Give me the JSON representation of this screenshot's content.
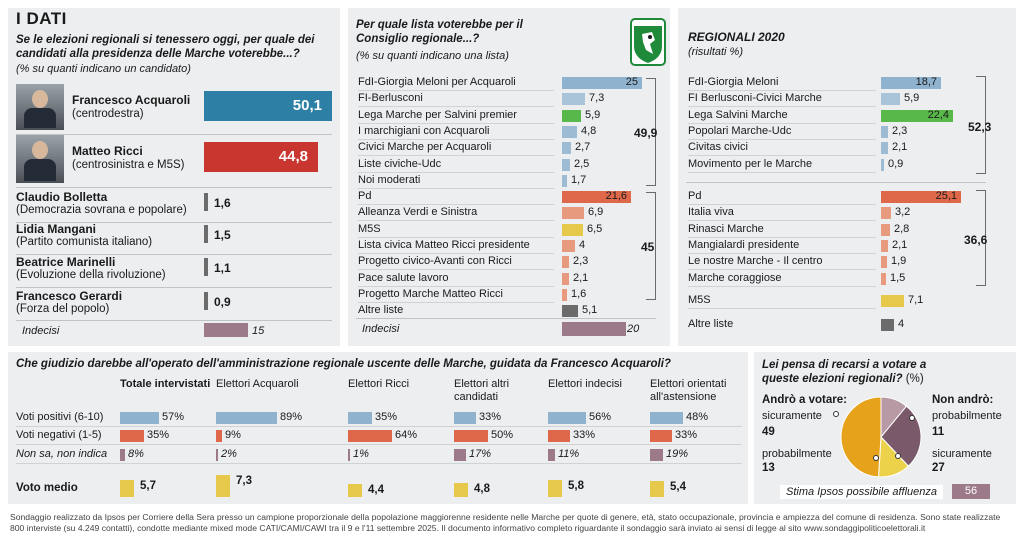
{
  "header": {
    "title": "I DATI",
    "question": "Se le elezioni regionali si tenessero oggi, per quale dei candidati alla presidenza delle Marche voterebbe...?",
    "note": "(% su quanti indicano un candidato)"
  },
  "candidates": [
    {
      "name": "Francesco Acquaroli",
      "party": "(centrodestra)",
      "value": "50,1",
      "v": 50.1,
      "color": "#2e7fa6",
      "photo": true
    },
    {
      "name": "Matteo Ricci",
      "party": "(centrosinistra e M5S)",
      "value": "44,8",
      "v": 44.8,
      "color": "#c8362f",
      "photo": true
    },
    {
      "name": "Claudio Bolletta",
      "party": "(Democrazia sovrana e popolare)",
      "value": "1,6",
      "v": 1.6,
      "color": "#6b6b6b"
    },
    {
      "name": "Lidia Mangani",
      "party": "(Partito comunista italiano)",
      "value": "1,5",
      "v": 1.5,
      "color": "#6b6b6b"
    },
    {
      "name": "Beatrice Marinelli",
      "party": "(Evoluzione della rivoluzione)",
      "value": "1,1",
      "v": 1.1,
      "color": "#6b6b6b"
    },
    {
      "name": "Francesco Gerardi",
      "party": "(Forza del popolo)",
      "value": "0,9",
      "v": 0.9,
      "color": "#6b6b6b"
    }
  ],
  "candidates_undecided": {
    "label": "Indecisi",
    "value": "15",
    "v": 15
  },
  "lists": {
    "title": "Per quale lista voterebbe per il Consiglio regionale...?",
    "note": "(% su quanti indicano una lista)",
    "items": [
      {
        "name": "FdI-Giorgia Meloni per Acquaroli",
        "value": "25",
        "v": 25,
        "color": "#8fb3cf"
      },
      {
        "name": "FI-Berlusconi",
        "value": "7,3",
        "v": 7.3,
        "color": "#a9c4d8"
      },
      {
        "name": "Lega Marche per Salvini premier",
        "value": "5,9",
        "v": 5.9,
        "color": "#58b84a"
      },
      {
        "name": "I marchigiani con Acquaroli",
        "value": "4,8",
        "v": 4.8,
        "color": "#9dbcd4"
      },
      {
        "name": "Civici Marche per Acquaroli",
        "value": "2,7",
        "v": 2.7,
        "color": "#9dbcd4"
      },
      {
        "name": "Liste civiche-Udc",
        "value": "2,5",
        "v": 2.5,
        "color": "#9dbcd4"
      },
      {
        "name": "Noi moderati",
        "value": "1,7",
        "v": 1.7,
        "color": "#9dbcd4"
      },
      {
        "name": "Pd",
        "value": "21,6",
        "v": 21.6,
        "color": "#e0684a"
      },
      {
        "name": "Alleanza Verdi e Sinistra",
        "value": "6,9",
        "v": 6.9,
        "color": "#e89a7f"
      },
      {
        "name": "M5S",
        "value": "6,5",
        "v": 6.5,
        "color": "#e6c84a"
      },
      {
        "name": "Lista civica Matteo Ricci presidente",
        "value": "4",
        "v": 4,
        "color": "#e89a7f"
      },
      {
        "name": "Progetto civico-Avanti con Ricci",
        "value": "2,3",
        "v": 2.3,
        "color": "#e89a7f"
      },
      {
        "name": "Pace salute lavoro",
        "value": "2,1",
        "v": 2.1,
        "color": "#e89a7f"
      },
      {
        "name": "Progetto Marche Matteo Ricci",
        "value": "1,6",
        "v": 1.6,
        "color": "#e89a7f"
      },
      {
        "name": "Altre liste",
        "value": "5,1",
        "v": 5.1,
        "color": "#6b6b6b"
      }
    ],
    "undecided": {
      "label": "Indecisi",
      "value": "20",
      "v": 20
    },
    "total_right": "49,9",
    "total_left": "45"
  },
  "regionali": {
    "title": "REGIONALI 2020",
    "note": "(risultati %)",
    "items": [
      {
        "name": "FdI-Giorgia Meloni",
        "value": "18,7",
        "v": 18.7,
        "color": "#8fb3cf"
      },
      {
        "name": "FI Berlusconi-Civici Marche",
        "value": "5,9",
        "v": 5.9,
        "color": "#a9c4d8"
      },
      {
        "name": "Lega Salvini Marche",
        "value": "22,4",
        "v": 22.4,
        "color": "#58b84a"
      },
      {
        "name": "Popolari Marche-Udc",
        "value": "2,3",
        "v": 2.3,
        "color": "#9dbcd4"
      },
      {
        "name": "Civitas civici",
        "value": "2,1",
        "v": 2.1,
        "color": "#9dbcd4"
      },
      {
        "name": "Movimento per le Marche",
        "value": "0,9",
        "v": 0.9,
        "color": "#9dbcd4"
      },
      {
        "name": "Pd",
        "value": "25,1",
        "v": 25.1,
        "color": "#e0684a"
      },
      {
        "name": "Italia viva",
        "value": "3,2",
        "v": 3.2,
        "color": "#e89a7f"
      },
      {
        "name": "Rinasci Marche",
        "value": "2,8",
        "v": 2.8,
        "color": "#e89a7f"
      },
      {
        "name": "Mangialardi presidente",
        "value": "2,1",
        "v": 2.1,
        "color": "#e89a7f"
      },
      {
        "name": "Le nostre Marche - Il centro",
        "value": "1,9",
        "v": 1.9,
        "color": "#e89a7f"
      },
      {
        "name": "Marche coraggiose",
        "value": "1,5",
        "v": 1.5,
        "color": "#e89a7f"
      },
      {
        "name": "M5S",
        "value": "7,1",
        "v": 7.1,
        "color": "#e6c84a"
      },
      {
        "name": "Altre liste",
        "value": "4",
        "v": 4,
        "color": "#6b6b6b"
      }
    ],
    "total_right": "52,3",
    "total_left": "36,6"
  },
  "judgement": {
    "title": "Che giudizio darebbe all'operato dell'amministrazione regionale uscente delle Marche, guidata da Francesco Acquaroli?",
    "columns": [
      "Totale intervistati",
      "Elettori Acquaroli",
      "Elettori Ricci",
      "Elettori altri candidati",
      "Elettori indecisi",
      "Elettori orientati all'astensione"
    ],
    "rows": [
      {
        "label": "Voti positivi (6-10)",
        "values": [
          "57%",
          "89%",
          "35%",
          "33%",
          "56%",
          "48%"
        ],
        "v": [
          57,
          89,
          35,
          33,
          56,
          48
        ],
        "color": "#8fb3cf"
      },
      {
        "label": "Voti negativi (1-5)",
        "values": [
          "35%",
          "9%",
          "64%",
          "50%",
          "33%",
          "33%"
        ],
        "v": [
          35,
          9,
          64,
          50,
          33,
          33
        ],
        "color": "#e0684a"
      },
      {
        "label": "Non sa, non indica",
        "values": [
          "8%",
          "2%",
          "1%",
          "17%",
          "11%",
          "19%"
        ],
        "v": [
          8,
          2,
          1,
          17,
          11,
          19
        ],
        "color": "#9c7a8a"
      }
    ],
    "avg_label": "Voto medio",
    "avg": [
      "5,7",
      "7,3",
      "4,4",
      "4,8",
      "5,8",
      "5,4"
    ],
    "avg_v": [
      5.7,
      7.3,
      4.4,
      4.8,
      5.8,
      5.4
    ]
  },
  "turnout": {
    "title": "Lei pensa di recarsi a votare a queste elezioni regionali?",
    "title_unit": "(%)",
    "will": "Andrò a votare:",
    "wont": "Non andrò:",
    "slices": [
      {
        "label": "sicuramente",
        "value": "49",
        "v": 49,
        "color": "#e6a21a"
      },
      {
        "label": "probabilmente",
        "value": "13",
        "v": 13,
        "color": "#ecd24a"
      },
      {
        "label": "sicuramente",
        "value": "27",
        "v": 27,
        "color": "#7a5a6a"
      },
      {
        "label": "probabilmente",
        "value": "11",
        "v": 11,
        "color": "#b89aa4"
      }
    ],
    "estimate_label": "Stima Ipsos possibile affluenza",
    "estimate": "56"
  },
  "footer": "Sondaggio realizzato da Ipsos per Corriere della Sera presso un campione proporzionale della popolazione maggiorenne residente nelle Marche per quote di genere, età, stato occupazionale, provincia e ampiezza del comune di residenza. Sono state realizzate 800 interviste (su 4.249 contatti), condotte mediante mixed mode CATI/CAMI/CAWI tra il 9 e l'11 settembre 2025. Il documento informativo completo riguardante il sondaggio sarà inviato ai sensi di legge al sito www.sondaggipoliticoelettorali.it",
  "chart_data": [
    {
      "type": "bar",
      "title": "Se le elezioni regionali si tenessero oggi, per quale dei candidati alla presidenza delle Marche voterebbe...?",
      "categories": [
        "Francesco Acquaroli",
        "Matteo Ricci",
        "Claudio Bolletta",
        "Lidia Mangani",
        "Beatrice Marinelli",
        "Francesco Gerardi",
        "Indecisi"
      ],
      "values": [
        50.1,
        44.8,
        1.6,
        1.5,
        1.1,
        0.9,
        15
      ]
    },
    {
      "type": "bar",
      "title": "Per quale lista voterebbe per il Consiglio regionale...?",
      "categories": [
        "FdI-Giorgia Meloni per Acquaroli",
        "FI-Berlusconi",
        "Lega Marche per Salvini premier",
        "I marchigiani con Acquaroli",
        "Civici Marche per Acquaroli",
        "Liste civiche-Udc",
        "Noi moderati",
        "Pd",
        "Alleanza Verdi e Sinistra",
        "M5S",
        "Lista civica Matteo Ricci presidente",
        "Progetto civico-Avanti con Ricci",
        "Pace salute lavoro",
        "Progetto Marche Matteo Ricci",
        "Altre liste",
        "Indecisi"
      ],
      "values": [
        25,
        7.3,
        5.9,
        4.8,
        2.7,
        2.5,
        1.7,
        21.6,
        6.9,
        6.5,
        4,
        2.3,
        2.1,
        1.6,
        5.1,
        20
      ]
    },
    {
      "type": "bar",
      "title": "REGIONALI 2020",
      "categories": [
        "FdI-Giorgia Meloni",
        "FI Berlusconi-Civici Marche",
        "Lega Salvini Marche",
        "Popolari Marche-Udc",
        "Civitas civici",
        "Movimento per le Marche",
        "Pd",
        "Italia viva",
        "Rinasci Marche",
        "Mangialardi presidente",
        "Le nostre Marche - Il centro",
        "Marche coraggiose",
        "M5S",
        "Altre liste"
      ],
      "values": [
        18.7,
        5.9,
        22.4,
        2.3,
        2.1,
        0.9,
        25.1,
        3.2,
        2.8,
        2.1,
        1.9,
        1.5,
        7.1,
        4
      ]
    },
    {
      "type": "bar",
      "title": "Che giudizio darebbe all'operato dell'amministrazione regionale uscente delle Marche, guidata da Francesco Acquaroli?",
      "categories": [
        "Totale intervistati",
        "Elettori Acquaroli",
        "Elettori Ricci",
        "Elettori altri candidati",
        "Elettori indecisi",
        "Elettori orientati all'astensione"
      ],
      "series": [
        {
          "name": "Voti positivi (6-10)",
          "values": [
            57,
            89,
            35,
            33,
            56,
            48
          ]
        },
        {
          "name": "Voti negativi (1-5)",
          "values": [
            35,
            9,
            64,
            50,
            33,
            33
          ]
        },
        {
          "name": "Non sa, non indica",
          "values": [
            8,
            2,
            1,
            17,
            11,
            19
          ]
        },
        {
          "name": "Voto medio",
          "values": [
            5.7,
            7.3,
            4.4,
            4.8,
            5.8,
            5.4
          ]
        }
      ]
    },
    {
      "type": "pie",
      "title": "Lei pensa di recarsi a votare a queste elezioni regionali?",
      "categories": [
        "Andrò a votare: sicuramente",
        "Andrò a votare: probabilmente",
        "Non andrò: sicuramente",
        "Non andrò: probabilmente"
      ],
      "values": [
        49,
        13,
        27,
        11
      ]
    }
  ]
}
